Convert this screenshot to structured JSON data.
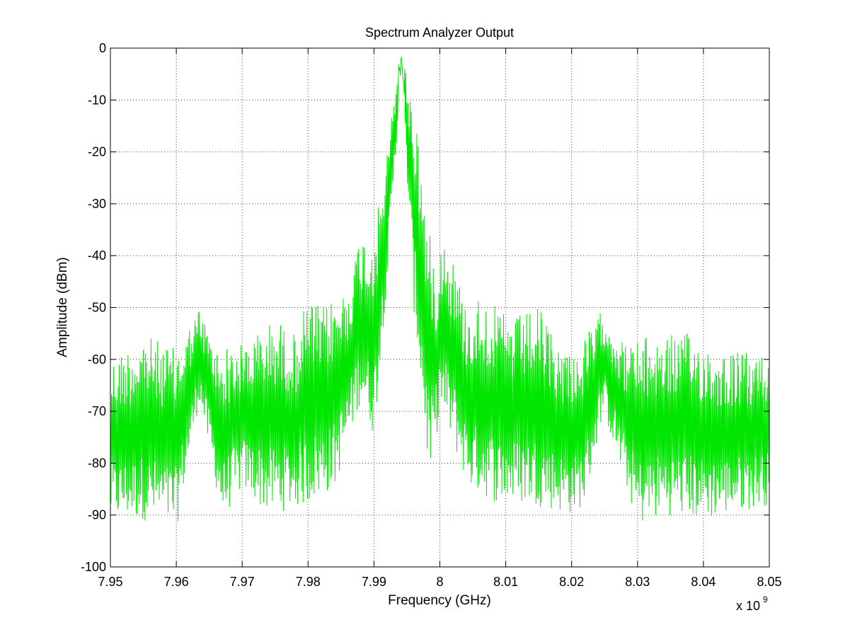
{
  "chart_data": {
    "type": "line",
    "title": "Spectrum Analyzer Output",
    "xlabel": "Frequency (GHz)",
    "ylabel": "Amplitude (dBm)",
    "x_multiplier_label": "x 10",
    "x_multiplier_exp": "9",
    "xlim": [
      7950000000.0,
      8050000000.0
    ],
    "ylim": [
      -100,
      0
    ],
    "x_ticks": [
      7950000000.0,
      7960000000.0,
      7970000000.0,
      7980000000.0,
      7990000000.0,
      8000000000.0,
      8010000000.0,
      8020000000.0,
      8030000000.0,
      8040000000.0,
      8050000000.0
    ],
    "x_tick_labels": [
      "7.95",
      "7.96",
      "7.97",
      "7.98",
      "7.99",
      "8",
      "8.01",
      "8.02",
      "8.03",
      "8.04",
      "8.05"
    ],
    "y_ticks": [
      0,
      -10,
      -20,
      -30,
      -40,
      -50,
      -60,
      -70,
      -80,
      -90,
      -100
    ],
    "y_tick_labels": [
      "0",
      "-10",
      "-20",
      "-30",
      "-40",
      "-50",
      "-60",
      "-70",
      "-80",
      "-90",
      "-100"
    ],
    "grid": true,
    "line_color": "#00e600",
    "series": [
      {
        "upper_envelope": {
          "x": [
            7950000000.0,
            7955000000.0,
            7960000000.0,
            7963500000.0,
            7966000000.0,
            7970000000.0,
            7975000000.0,
            7978000000.0,
            7980000000.0,
            7982000000.0,
            7984000000.0,
            7986000000.0,
            7988000000.0,
            7989000000.0,
            7990500000.0,
            7992000000.0,
            7993500000.0,
            7994200000.0,
            7995000000.0,
            7996500000.0,
            7998000000.0,
            7999500000.0,
            8000200000.0,
            8002000000.0,
            8004000000.0,
            8006500000.0,
            8008500000.0,
            8011000000.0,
            8015000000.0,
            8018000000.0,
            8021000000.0,
            8024800000.0,
            8028000000.0,
            8033000000.0,
            8038000000.0,
            8042000000.0,
            8050000000.0
          ],
          "y": [
            -60,
            -55,
            -58,
            -50,
            -58,
            -57,
            -52,
            -55,
            -48,
            -50,
            -48,
            -46,
            -35,
            -37,
            -32,
            -20,
            -4,
            -1,
            -5,
            -14,
            -32,
            -44,
            -35,
            -40,
            -50,
            -47,
            -50,
            -52,
            -50,
            -57,
            -58,
            -50,
            -57,
            -55,
            -55,
            -58,
            -59
          ]
        },
        "lower_envelope": {
          "x": [
            7950000000.0,
            7955000000.0,
            7960000000.0,
            7963500000.0,
            7967000000.0,
            7970000000.0,
            7974000000.0,
            7980000000.0,
            7984000000.0,
            7988000000.0,
            7990000000.0,
            7992000000.0,
            7994200000.0,
            7996000000.0,
            7998500000.0,
            8000000000.0,
            8004500000.0,
            8009000000.0,
            8014000000.0,
            8020000000.0,
            8022000000.0,
            8024800000.0,
            8030000000.0,
            8035000000.0,
            8040000000.0,
            8050000000.0
          ],
          "y": [
            -91,
            -91,
            -93,
            -68,
            -91,
            -85,
            -90,
            -88,
            -85,
            -68,
            -75,
            -45,
            -5,
            -50,
            -85,
            -70,
            -85,
            -88,
            -88,
            -90,
            -88,
            -70,
            -92,
            -90,
            -91,
            -88
          ]
        }
      }
    ]
  }
}
